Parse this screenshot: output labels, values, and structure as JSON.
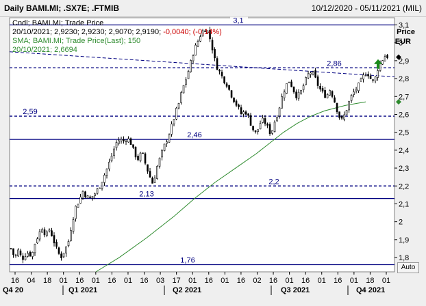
{
  "header": {
    "title": "Daily BAMI.MI; .SX7E; .FTMIB",
    "date_range": "10/12/2020 - 05/11/2021 (MIL)"
  },
  "legend": {
    "line1": "Cndl; BAMI.MI; Trade Price",
    "line2_prefix": "20/10/2021; 2,9230; 2,9230; 2,9070; 2,9190; ",
    "line2_change": "-0,0040; (-0,14%)",
    "line3": "SMA; BAMI.MI; Trade Price(Last); 150",
    "line4": "20/10/2021; 2,6694"
  },
  "axis_header": {
    "label": "Price",
    "unit": "EUR"
  },
  "auto_button": {
    "label": "Auto"
  },
  "colors": {
    "candles": "#000000",
    "sma": "#2e8b2e",
    "hlines": "#000080",
    "change_negative": "#cc0000",
    "arrow_up": "#1a8a1a"
  },
  "chart_data": {
    "type": "candlestick",
    "ylim": [
      1.72,
      3.14
    ],
    "y_ticks": [
      "1,8",
      "1,9",
      "2",
      "2,1",
      "2,2",
      "2,3",
      "2,4",
      "2,5",
      "2,6",
      "2,7",
      "2,8",
      "2,9",
      "3",
      "3,1"
    ],
    "x_ticks": [
      "16",
      "04",
      "18",
      "01",
      "16",
      "01",
      "16",
      "01",
      "16",
      "03",
      "17",
      "01",
      "16",
      "01",
      "16",
      "02",
      "16",
      "01",
      "16",
      "01",
      "16",
      "01",
      "18",
      "01"
    ],
    "x_groups": [
      "Q4 20",
      "Q1 2021",
      "Q2 2021",
      "Q3 2021",
      "Q4 2021"
    ],
    "horizontal_lines": [
      {
        "value": 3.1,
        "label": "3,1",
        "style": "solid"
      },
      {
        "value": 2.86,
        "label": "2,86",
        "style": "dashed"
      },
      {
        "value": 2.59,
        "label": "2,59",
        "style": "dashed"
      },
      {
        "value": 2.46,
        "label": "2,46",
        "style": "solid"
      },
      {
        "value": 2.2,
        "label": "2,2",
        "style": "dashed"
      },
      {
        "value": 2.13,
        "label": "2,13",
        "style": "solid"
      },
      {
        "value": 1.76,
        "label": "1,76",
        "style": "solid"
      }
    ],
    "trendline": {
      "from": 2.95,
      "to": 2.81,
      "style": "dashed"
    },
    "price_path": [
      [
        0,
        1.85
      ],
      [
        4,
        1.8
      ],
      [
        8,
        1.84
      ],
      [
        12,
        1.79
      ],
      [
        16,
        1.82
      ],
      [
        20,
        1.83
      ],
      [
        22,
        1.8
      ],
      [
        26,
        1.88
      ],
      [
        30,
        1.93
      ],
      [
        34,
        1.97
      ],
      [
        38,
        1.92
      ],
      [
        42,
        1.96
      ],
      [
        46,
        1.9
      ],
      [
        50,
        1.84
      ],
      [
        54,
        1.8
      ],
      [
        58,
        1.84
      ],
      [
        62,
        1.88
      ],
      [
        66,
        1.99
      ],
      [
        70,
        2.08
      ],
      [
        74,
        2.12
      ],
      [
        78,
        2.17
      ],
      [
        82,
        2.14
      ],
      [
        86,
        2.13
      ],
      [
        90,
        2.15
      ],
      [
        94,
        2.18
      ],
      [
        98,
        2.22
      ],
      [
        102,
        2.27
      ],
      [
        106,
        2.32
      ],
      [
        110,
        2.38
      ],
      [
        114,
        2.44
      ],
      [
        118,
        2.46
      ],
      [
        122,
        2.45
      ],
      [
        126,
        2.47
      ],
      [
        130,
        2.44
      ],
      [
        134,
        2.38
      ],
      [
        138,
        2.35
      ],
      [
        142,
        2.39
      ],
      [
        146,
        2.32
      ],
      [
        150,
        2.26
      ],
      [
        154,
        2.21
      ],
      [
        158,
        2.3
      ],
      [
        162,
        2.36
      ],
      [
        166,
        2.42
      ],
      [
        170,
        2.47
      ],
      [
        174,
        2.53
      ],
      [
        178,
        2.6
      ],
      [
        182,
        2.66
      ],
      [
        186,
        2.74
      ],
      [
        190,
        2.8
      ],
      [
        194,
        2.87
      ],
      [
        198,
        2.95
      ],
      [
        202,
        3.0
      ],
      [
        206,
        3.05
      ],
      [
        210,
        3.08
      ],
      [
        214,
        3.06
      ],
      [
        218,
        2.98
      ],
      [
        222,
        2.88
      ],
      [
        226,
        2.84
      ],
      [
        230,
        2.8
      ],
      [
        234,
        2.77
      ],
      [
        238,
        2.72
      ],
      [
        242,
        2.68
      ],
      [
        246,
        2.64
      ],
      [
        250,
        2.6
      ],
      [
        254,
        2.62
      ],
      [
        258,
        2.58
      ],
      [
        262,
        2.52
      ],
      [
        266,
        2.49
      ],
      [
        270,
        2.55
      ],
      [
        274,
        2.57
      ],
      [
        278,
        2.53
      ],
      [
        282,
        2.49
      ],
      [
        286,
        2.56
      ],
      [
        290,
        2.62
      ],
      [
        294,
        2.7
      ],
      [
        298,
        2.76
      ],
      [
        302,
        2.79
      ],
      [
        306,
        2.74
      ],
      [
        310,
        2.7
      ],
      [
        314,
        2.72
      ],
      [
        318,
        2.77
      ],
      [
        322,
        2.82
      ],
      [
        326,
        2.84
      ],
      [
        330,
        2.8
      ],
      [
        334,
        2.75
      ],
      [
        338,
        2.72
      ],
      [
        342,
        2.7
      ],
      [
        346,
        2.74
      ],
      [
        350,
        2.69
      ],
      [
        354,
        2.62
      ],
      [
        358,
        2.56
      ],
      [
        362,
        2.6
      ],
      [
        366,
        2.66
      ],
      [
        370,
        2.71
      ],
      [
        374,
        2.74
      ],
      [
        378,
        2.77
      ],
      [
        382,
        2.81
      ],
      [
        386,
        2.84
      ],
      [
        390,
        2.8
      ],
      [
        394,
        2.78
      ],
      [
        398,
        2.86
      ],
      [
        402,
        2.9
      ],
      [
        406,
        2.93
      ],
      [
        410,
        2.92
      ]
    ],
    "sma_path": [
      [
        126,
        1.72
      ],
      [
        160,
        1.8
      ],
      [
        200,
        1.91
      ],
      [
        240,
        2.03
      ],
      [
        270,
        2.13
      ],
      [
        300,
        2.22
      ],
      [
        330,
        2.3
      ],
      [
        360,
        2.38
      ],
      [
        380,
        2.44
      ],
      [
        400,
        2.5
      ],
      [
        420,
        2.55
      ],
      [
        440,
        2.59
      ],
      [
        460,
        2.62
      ],
      [
        490,
        2.65
      ],
      [
        520,
        2.67
      ]
    ]
  }
}
